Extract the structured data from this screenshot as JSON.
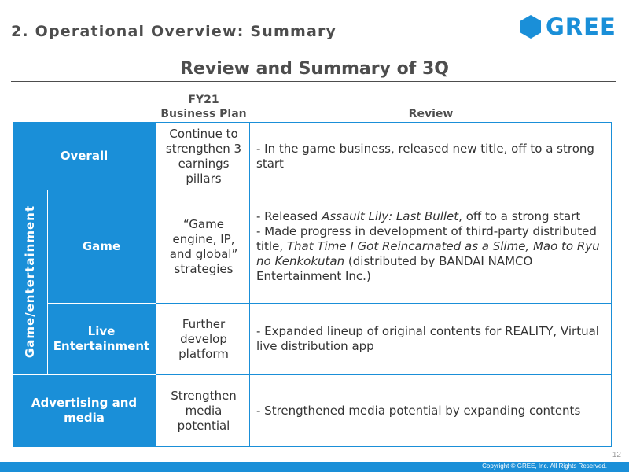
{
  "header": {
    "section_title": "2. Operational Overview: Summary",
    "logo_text": "GREE",
    "slide_title": "Review and Summary of 3Q"
  },
  "table": {
    "plan_header_line1": "FY21",
    "plan_header_line2": "Business Plan",
    "review_header": "Review",
    "rows": {
      "overall": {
        "label": "Overall",
        "plan": "Continue to strengthen 3 earnings pillars",
        "review": "- In the game business, released new title, off to a strong start"
      },
      "group_label": "Game/entertainment",
      "game": {
        "label": "Game",
        "plan": "“Game engine, IP, and global” strategies",
        "review_1a": "- Released ",
        "review_1b": "Assault Lily: Last Bullet",
        "review_1c": ", off to a strong start",
        "review_2a": "- Made progress in development of third-party distributed title, ",
        "review_2b": "That Time I Got Reincarnated as a Slime, Mao to Ryu no Kenkokutan",
        "review_2c": " (distributed by BANDAI NAMCO Entertainment Inc.)"
      },
      "live": {
        "label": "Live Entertainment",
        "plan": "Further develop platform",
        "review": "- Expanded lineup of original contents for REALITY, Virtual live distribution app"
      },
      "advertising": {
        "label": "Advertising and media",
        "plan": "Strengthen media potential",
        "review": "- Strengthened media potential by expanding contents"
      }
    }
  },
  "footer": {
    "page_number": "12",
    "copyright": "Copyright © GREE, Inc. All Rights Reserved."
  },
  "colors": {
    "accent": "#1a8fd8",
    "text": "#333333",
    "title": "#4d4d4d"
  }
}
